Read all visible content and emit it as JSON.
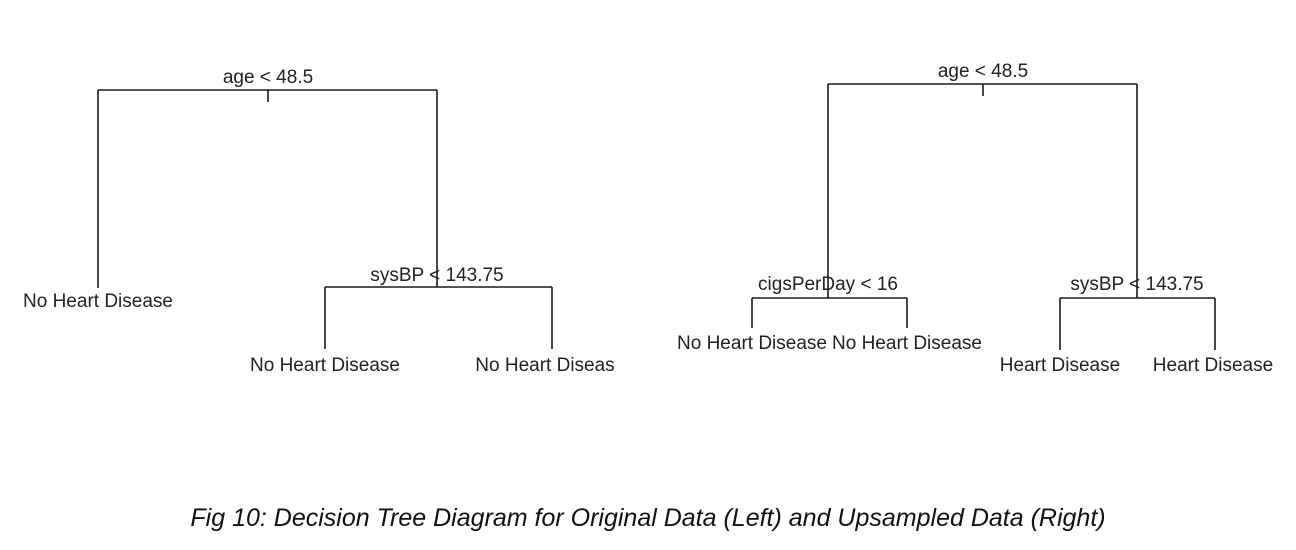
{
  "trees": [
    {
      "splits": [
        "age < 48.5",
        "sysBP < 143.75"
      ],
      "leaves": [
        "No Heart Disease",
        "No Heart Disease",
        "No Heart Diseas"
      ]
    },
    {
      "splits": [
        "age < 48.5",
        "cigsPerDay < 16",
        "sysBP < 143.75"
      ],
      "leaves": [
        "No Heart Disease",
        "No Heart Disease",
        "Heart Disease",
        "Heart Disease"
      ]
    }
  ],
  "caption": "Fig 10: Decision Tree Diagram for Original Data (Left) and Upsampled Data (Right)"
}
